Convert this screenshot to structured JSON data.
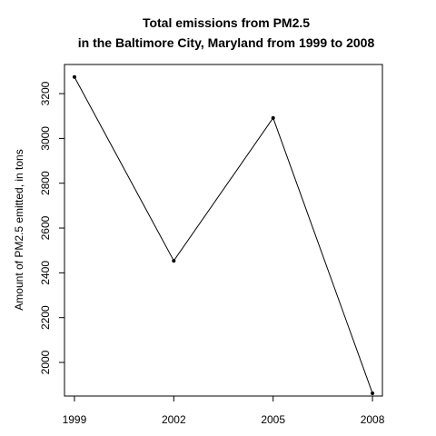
{
  "chart_data": {
    "type": "line",
    "title_lines": [
      "Total emissions from PM2.5",
      "in the Baltimore City, Maryland from 1999 to 2008"
    ],
    "xlabel": "",
    "ylabel": "Amount of PM2.5 emitted, in tons",
    "x": [
      1999,
      2002,
      2005,
      2008
    ],
    "x_tick_labels": [
      "1999",
      "2002",
      "2005",
      "2008"
    ],
    "y_ticks": [
      2000,
      2200,
      2400,
      2600,
      2800,
      3000,
      3200
    ],
    "y_tick_labels": [
      "2000",
      "2200",
      "2400",
      "2600",
      "2800",
      "3000",
      "3200"
    ],
    "xlim": [
      1998.7,
      2008.3
    ],
    "ylim": [
      1850,
      3330
    ],
    "series": [
      {
        "values": [
          3274.2,
          2453.9,
          3091.4,
          1862.3
        ]
      }
    ],
    "grid": false,
    "legend": "none",
    "line_color": "#000000"
  }
}
